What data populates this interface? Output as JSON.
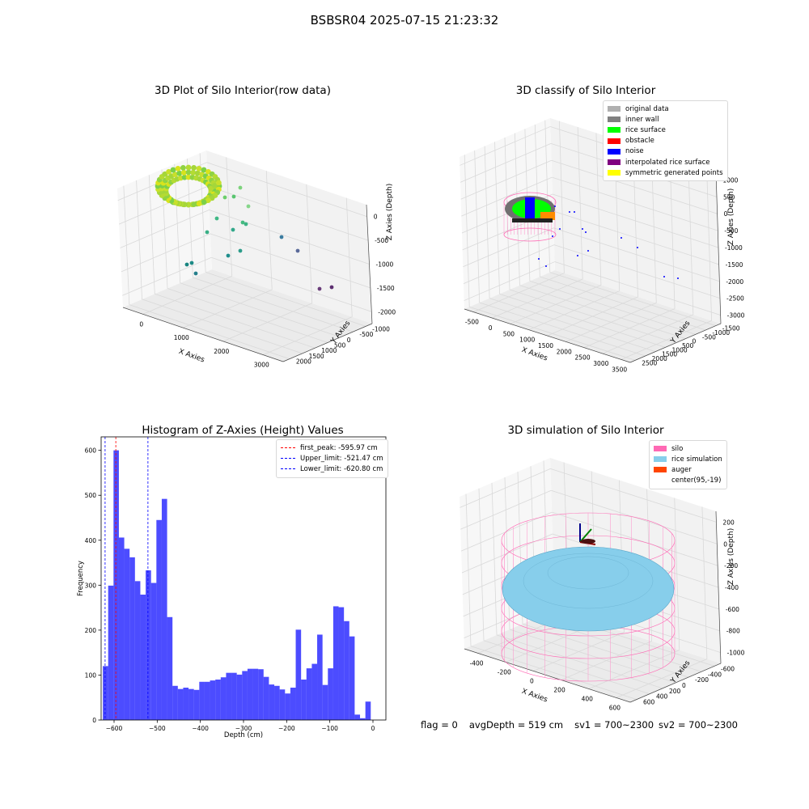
{
  "suptitle": "BSBSR04 2025-07-15 21:23:32",
  "panels": {
    "raw": {
      "title": "3D Plot of Silo Interior(row data)",
      "xlabel": "X Axies",
      "ylabel": "Y Axies",
      "zlabel": "Z Axies (Depth)",
      "x_ticks": [
        "0",
        "1000",
        "2000",
        "3000"
      ],
      "y_ticks": [
        "-1000",
        "-500",
        "0",
        "500",
        "1000",
        "1500",
        "2000"
      ],
      "z_ticks": [
        "0",
        "-500",
        "-1000",
        "-1500",
        "-2000"
      ]
    },
    "classify": {
      "title": "3D classify of Silo Interior",
      "xlabel": "X Axies",
      "ylabel": "Y Axies",
      "zlabel": "Z Axies (Depth)",
      "x_ticks": [
        "-500",
        "0",
        "500",
        "1000",
        "1500",
        "2000",
        "2500",
        "3000",
        "3500"
      ],
      "y_ticks": [
        "-1500",
        "-1000",
        "-500",
        "0",
        "500",
        "1000",
        "1500",
        "2000",
        "2500"
      ],
      "z_ticks": [
        "1000",
        "500",
        "0",
        "-500",
        "-1000",
        "-1500",
        "-2000",
        "-2500",
        "-3000"
      ],
      "legend": [
        {
          "label": "original data",
          "color": "#b0b0b0"
        },
        {
          "label": "inner wall",
          "color": "#808080"
        },
        {
          "label": "rice surface",
          "color": "#00ff00"
        },
        {
          "label": "obstacle",
          "color": "#ff0000"
        },
        {
          "label": "noise",
          "color": "#0000ff"
        },
        {
          "label": "interpolated rice surface",
          "color": "#800080"
        },
        {
          "label": "symmetric generated points",
          "color": "#ffff00"
        }
      ]
    },
    "simulation": {
      "title": "3D simulation of Silo Interior",
      "xlabel": "X Axies",
      "ylabel": "Y Axies",
      "zlabel": "Z Axies (Depth)",
      "x_ticks": [
        "-400",
        "-200",
        "0",
        "200",
        "400",
        "600"
      ],
      "y_ticks": [
        "-600",
        "-400",
        "-200",
        "0",
        "200",
        "400",
        "600"
      ],
      "z_ticks": [
        "200",
        "0",
        "-200",
        "-400",
        "-600",
        "-800",
        "-1000"
      ],
      "legend": [
        {
          "label": "silo",
          "color": "#ff69b4"
        },
        {
          "label": "rice simulation",
          "color": "#87ceeb"
        },
        {
          "label": "auger",
          "color": "#ff4500"
        },
        {
          "label": "center(95,-19)",
          "color": ""
        }
      ]
    }
  },
  "status": {
    "flag": "flag = 0",
    "avg_depth": "avgDepth = 519 cm",
    "sv1": "sv1 = 700~2300",
    "sv2": "sv2 = 700~2300"
  },
  "chart_data": [
    {
      "type": "bar",
      "title": "Histogram of Z-Axies (Height) Values",
      "xlabel": "Depth (cm)",
      "ylabel": "Frequency",
      "xlim": [
        -630,
        30
      ],
      "ylim": [
        0,
        630
      ],
      "x_ticks": [
        -600,
        -500,
        -400,
        -300,
        -200,
        -100,
        0
      ],
      "y_ticks": [
        0,
        100,
        200,
        300,
        400,
        500,
        600
      ],
      "bar_color": "#0000ff",
      "bin_width": 12.42,
      "bin_start": -626.1,
      "values": [
        120,
        299,
        600,
        406,
        381,
        362,
        309,
        279,
        333,
        305,
        445,
        492,
        229,
        76,
        69,
        72,
        69,
        67,
        85,
        85,
        88,
        90,
        95,
        105,
        105,
        101,
        109,
        114,
        114,
        113,
        96,
        79,
        76,
        68,
        59,
        72,
        201,
        90,
        115,
        125,
        190,
        78,
        115,
        253,
        251,
        220,
        186,
        12,
        4,
        41
      ],
      "vlines": [
        {
          "label": "first_peak: -595.97 cm",
          "x": -595.97,
          "color": "#ff0000"
        },
        {
          "label": "Upper_limit: -521.47 cm",
          "x": -521.47,
          "color": "#0000ff"
        },
        {
          "label": "Lower_limit: -620.80 cm",
          "x": -620.8,
          "color": "#0000ff"
        }
      ]
    }
  ]
}
